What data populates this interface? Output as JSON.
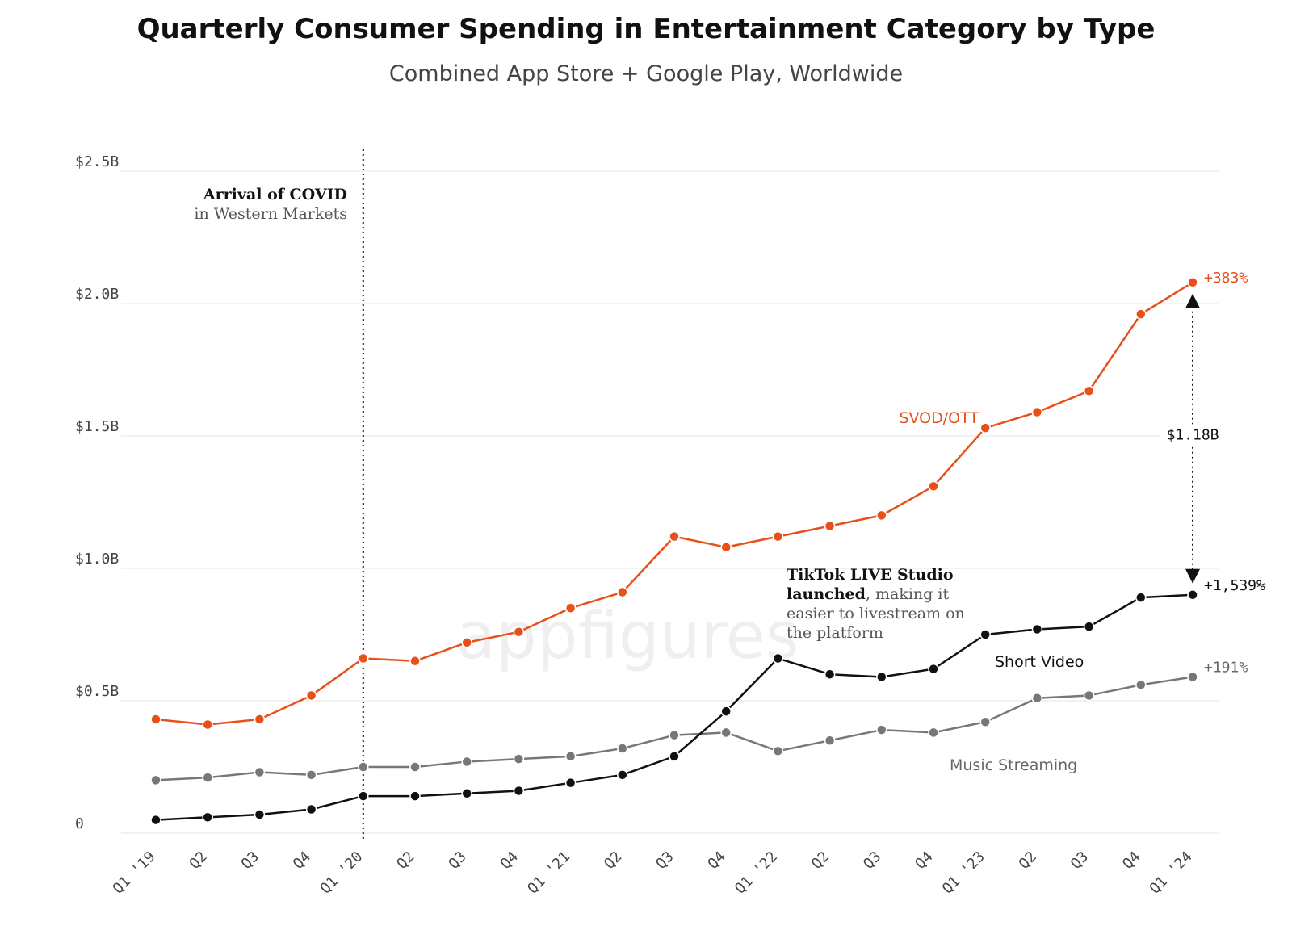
{
  "chart_data": {
    "type": "line",
    "title": "Quarterly Consumer Spending in Entertainment Category by Type",
    "subtitle": "Combined App Store + Google Play, Worldwide",
    "ylim": [
      0,
      2.5
    ],
    "y_ticks": [
      {
        "value": 0,
        "label": "0"
      },
      {
        "value": 0.5,
        "label": "$0.5B"
      },
      {
        "value": 1.0,
        "label": "$1.0B"
      },
      {
        "value": 1.5,
        "label": "$1.5B"
      },
      {
        "value": 2.0,
        "label": "$2.0B"
      },
      {
        "value": 2.5,
        "label": "$2.5B"
      }
    ],
    "categories": [
      "Q1 '19",
      "Q2",
      "Q3",
      "Q4",
      "Q1 '20",
      "Q2",
      "Q3",
      "Q4",
      "Q1 '21",
      "Q2",
      "Q3",
      "Q4",
      "Q1 '22",
      "Q2",
      "Q3",
      "Q4",
      "Q1 '23",
      "Q2",
      "Q3",
      "Q4",
      "Q1 '24"
    ],
    "series": [
      {
        "name": "SVOD/OTT",
        "color": "#e8501a",
        "end_label": "+383%",
        "values": [
          0.43,
          0.41,
          0.43,
          0.52,
          0.66,
          0.65,
          0.72,
          0.76,
          0.85,
          0.91,
          1.12,
          1.08,
          1.12,
          1.16,
          1.2,
          1.31,
          1.53,
          1.59,
          1.67,
          1.96,
          2.08
        ]
      },
      {
        "name": "Short Video",
        "color": "#111111",
        "end_label": "+1,539%",
        "values": [
          0.05,
          0.06,
          0.07,
          0.09,
          0.14,
          0.14,
          0.15,
          0.16,
          0.19,
          0.22,
          0.29,
          0.46,
          0.66,
          0.6,
          0.59,
          0.62,
          0.75,
          0.77,
          0.78,
          0.89,
          0.9
        ]
      },
      {
        "name": "Music Streaming",
        "color": "#777777",
        "end_label": "+191%",
        "values": [
          0.2,
          0.21,
          0.23,
          0.22,
          0.25,
          0.25,
          0.27,
          0.28,
          0.29,
          0.32,
          0.37,
          0.38,
          0.31,
          0.35,
          0.39,
          0.38,
          0.42,
          0.51,
          0.52,
          0.56,
          0.59
        ]
      }
    ],
    "annotations": {
      "covid_line_category_index": 4,
      "covid_bold": "Arrival of COVID",
      "covid_text": "in Western Markets",
      "tiktok_bold_1": "TikTok LIVE Studio",
      "tiktok_bold_2": "launched",
      "tiktok_text_2": ", making it",
      "tiktok_text_3": "easier to livestream on",
      "tiktok_text_4": "the platform",
      "gap_label": "$1.18B"
    },
    "watermark": "appfigures"
  }
}
